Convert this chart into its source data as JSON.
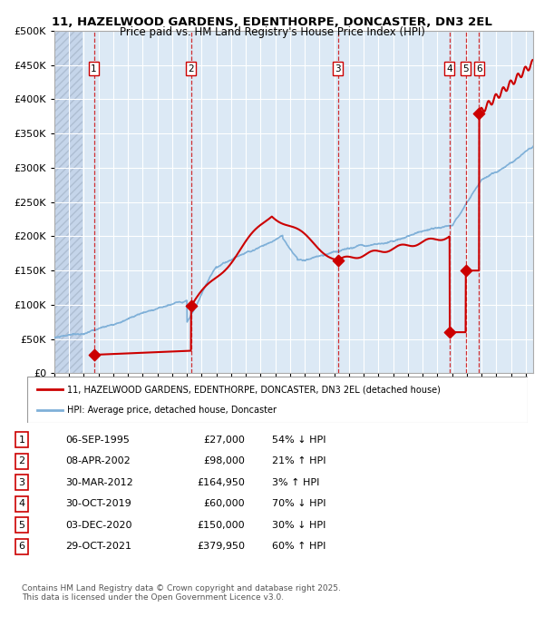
{
  "title_line1": "11, HAZELWOOD GARDENS, EDENTHORPE, DONCASTER, DN3 2EL",
  "title_line2": "Price paid vs. HM Land Registry's House Price Index (HPI)",
  "xlabel": "",
  "ylabel": "",
  "ylim": [
    0,
    500000
  ],
  "yticks": [
    0,
    50000,
    100000,
    150000,
    200000,
    250000,
    300000,
    350000,
    400000,
    450000,
    500000
  ],
  "ytick_labels": [
    "£0",
    "£50K",
    "£100K",
    "£150K",
    "£200K",
    "£250K",
    "£300K",
    "£350K",
    "£400K",
    "£450K",
    "£500K"
  ],
  "background_color": "#ffffff",
  "plot_bg_color": "#dce9f5",
  "hatch_color": "#c0d0e8",
  "grid_color": "#ffffff",
  "red_line_color": "#cc0000",
  "blue_line_color": "#7fb0d8",
  "sale_marker_color": "#cc0000",
  "dashed_line_color": "#cc0000",
  "transactions": [
    {
      "num": 1,
      "date": "06-SEP-1995",
      "price": 27000,
      "hpi_pct": "54% ↓ HPI",
      "x_year": 1995.68
    },
    {
      "num": 2,
      "date": "08-APR-2002",
      "price": 98000,
      "hpi_pct": "21% ↑ HPI",
      "x_year": 2002.27
    },
    {
      "num": 3,
      "date": "30-MAR-2012",
      "price": 164950,
      "hpi_pct": "3% ↑ HPI",
      "x_year": 2012.25
    },
    {
      "num": 4,
      "date": "30-OCT-2019",
      "price": 60000,
      "hpi_pct": "70% ↓ HPI",
      "x_year": 2019.83
    },
    {
      "num": 5,
      "date": "03-DEC-2020",
      "price": 150000,
      "hpi_pct": "30% ↓ HPI",
      "x_year": 2020.92
    },
    {
      "num": 6,
      "date": "29-OCT-2021",
      "price": 379950,
      "hpi_pct": "60% ↑ HPI",
      "x_year": 2021.83
    }
  ],
  "legend_line1": "11, HAZELWOOD GARDENS, EDENTHORPE, DONCASTER, DN3 2EL (detached house)",
  "legend_line2": "HPI: Average price, detached house, Doncaster",
  "footnote": "Contains HM Land Registry data © Crown copyright and database right 2025.\nThis data is licensed under the Open Government Licence v3.0.",
  "xlim": [
    1993,
    2025.5
  ],
  "hatch_end": 1994.9
}
